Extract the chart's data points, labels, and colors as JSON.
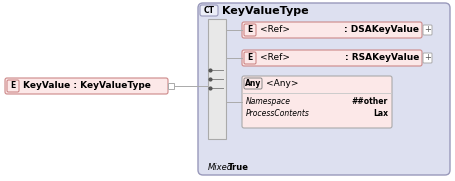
{
  "bg_color": "#ffffff",
  "outer_bg": "#dde0f0",
  "element_fill": "#fce8e8",
  "element_stroke": "#cc8888",
  "seq_fill": "#e8e8e8",
  "seq_stroke": "#aaaaaa",
  "any_fill": "#fce8e8",
  "any_stroke": "#aaaaaa",
  "ct_fill": "#eceef8",
  "ct_stroke": "#9999bb",
  "outer_stroke": "#9999bb",
  "title_text": "KeyValueType",
  "ct_label": "CT",
  "left_label": "E",
  "left_text": "KeyValue : KeyValueType",
  "row1_label": "E",
  "row1_ref": "<Ref>",
  "row1_type": ": DSAKeyValue",
  "row2_label": "E",
  "row2_ref": "<Ref>",
  "row2_type": ": RSAKeyValue",
  "any_label": "Any",
  "any_text": "<Any>",
  "ns_label": "Namespace",
  "ns_value": "##other",
  "pc_label": "ProcessContents",
  "pc_value": "Lax",
  "mixed_label": "Mixed",
  "mixed_value": "True",
  "text_color": "#000000",
  "line_color": "#aaaaaa"
}
